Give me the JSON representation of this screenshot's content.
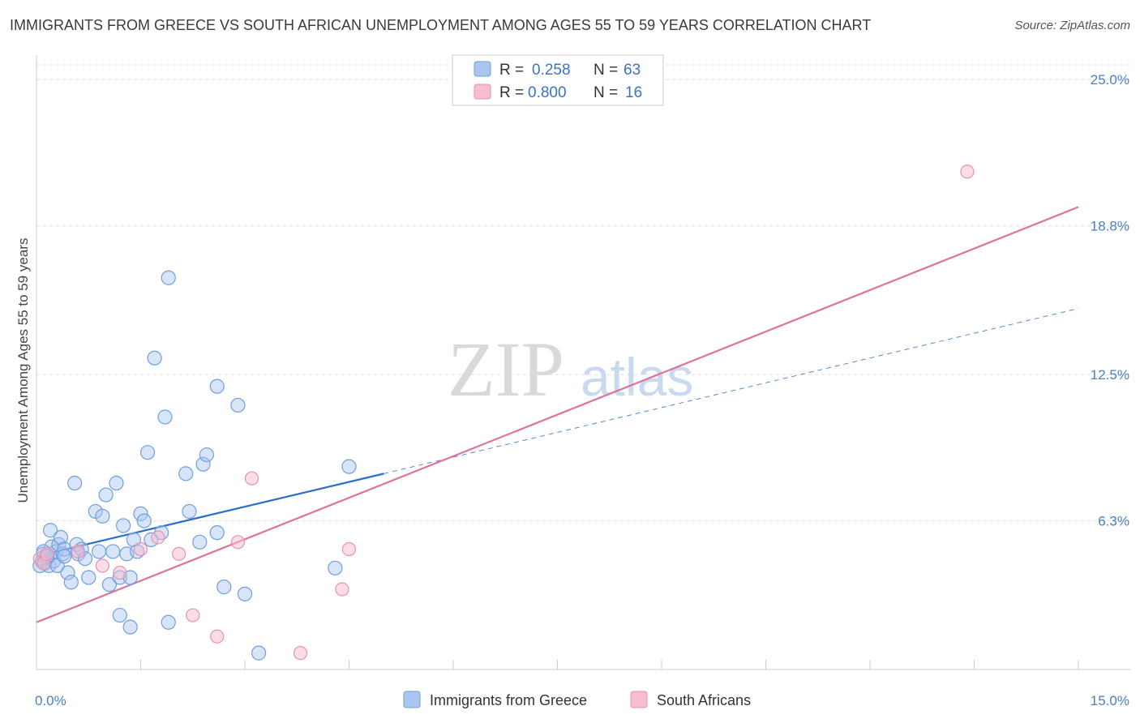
{
  "header": {
    "title": "IMMIGRANTS FROM GREECE VS SOUTH AFRICAN UNEMPLOYMENT AMONG AGES 55 TO 59 YEARS CORRELATION CHART",
    "source": "Source: ZipAtlas.com"
  },
  "watermark": {
    "zip": "ZIP",
    "atlas": "atlas"
  },
  "legend": {
    "rows": [
      {
        "r_label": "R =",
        "r_value": "0.258",
        "n_label": "N =",
        "n_value": "63"
      },
      {
        "r_label": "R =",
        "r_value": "0.800",
        "n_label": "N =",
        "n_value": "16"
      }
    ]
  },
  "colors": {
    "greece_fill": "#a9c6ef",
    "greece_stroke": "#6f9fde",
    "greece_line": "#2c6ecb",
    "sa_fill": "#f6bcd0",
    "sa_stroke": "#e891b0",
    "sa_line": "#e0729a",
    "grid": "#dddddd",
    "axis": "#cccccc"
  },
  "chart_data": {
    "type": "scatter",
    "title": "IMMIGRANTS FROM GREECE VS SOUTH AFRICAN UNEMPLOYMENT AMONG AGES 55 TO 59 YEARS CORRELATION CHART",
    "xlabel": "",
    "ylabel": "Unemployment Among Ages 55 to 59 years",
    "xlim": [
      0,
      15
    ],
    "ylim": [
      0,
      25.9
    ],
    "x_tick_labels": [
      {
        "value": 0,
        "label": "0.0%"
      },
      {
        "value": 15,
        "label": "15.0%"
      }
    ],
    "x_minor_ticks": [
      1.5,
      3.0,
      4.5,
      6.0,
      7.5,
      9.0,
      10.5,
      12.0,
      13.5,
      15.0
    ],
    "y_ticks": [
      {
        "value": 6.3,
        "label": "6.3%"
      },
      {
        "value": 12.5,
        "label": "12.5%"
      },
      {
        "value": 18.8,
        "label": "18.8%"
      },
      {
        "value": 25.0,
        "label": "25.0%"
      }
    ],
    "grid": true,
    "legend_position": "top-center",
    "series": [
      {
        "name": "Immigrants from Greece",
        "color": "#a9c6ef",
        "points": [
          [
            0.05,
            4.4
          ],
          [
            0.08,
            4.6
          ],
          [
            0.1,
            4.9
          ],
          [
            0.12,
            4.5
          ],
          [
            0.15,
            4.7
          ],
          [
            0.18,
            4.4
          ],
          [
            0.2,
            5.9
          ],
          [
            0.22,
            5.2
          ],
          [
            0.25,
            4.6
          ],
          [
            0.28,
            5.0
          ],
          [
            0.3,
            4.4
          ],
          [
            0.32,
            5.3
          ],
          [
            0.35,
            5.6
          ],
          [
            0.38,
            4.9
          ],
          [
            0.4,
            5.1
          ],
          [
            0.45,
            4.1
          ],
          [
            0.5,
            3.7
          ],
          [
            0.55,
            7.9
          ],
          [
            0.58,
            5.3
          ],
          [
            0.6,
            4.9
          ],
          [
            0.65,
            5.1
          ],
          [
            0.7,
            4.7
          ],
          [
            0.75,
            3.9
          ],
          [
            0.85,
            6.7
          ],
          [
            0.9,
            5.0
          ],
          [
            0.95,
            6.5
          ],
          [
            1.0,
            7.4
          ],
          [
            1.05,
            3.6
          ],
          [
            1.1,
            5.0
          ],
          [
            1.15,
            7.9
          ],
          [
            1.2,
            3.9
          ],
          [
            1.2,
            2.3
          ],
          [
            1.25,
            6.1
          ],
          [
            1.3,
            4.9
          ],
          [
            1.35,
            3.9
          ],
          [
            1.35,
            1.8
          ],
          [
            1.4,
            5.5
          ],
          [
            1.45,
            5.0
          ],
          [
            1.5,
            6.6
          ],
          [
            1.55,
            6.3
          ],
          [
            1.6,
            9.2
          ],
          [
            1.65,
            5.5
          ],
          [
            1.7,
            13.2
          ],
          [
            1.8,
            5.8
          ],
          [
            1.85,
            10.7
          ],
          [
            1.9,
            2.0
          ],
          [
            1.9,
            16.6
          ],
          [
            2.15,
            8.3
          ],
          [
            2.2,
            6.7
          ],
          [
            2.35,
            5.4
          ],
          [
            2.4,
            8.7
          ],
          [
            2.45,
            9.1
          ],
          [
            2.6,
            5.8
          ],
          [
            2.6,
            12.0
          ],
          [
            2.7,
            3.5
          ],
          [
            2.9,
            11.2
          ],
          [
            3.0,
            3.2
          ],
          [
            3.2,
            0.7
          ],
          [
            4.3,
            4.3
          ],
          [
            4.5,
            8.6
          ],
          [
            0.1,
            5.0
          ],
          [
            0.15,
            4.8
          ],
          [
            0.4,
            4.8
          ]
        ],
        "trend": {
          "x0": 0.0,
          "y0": 4.8,
          "x1": 5.0,
          "y1": 8.3,
          "dashed_to_x": 15.0,
          "dashed_to_y": 15.3
        }
      },
      {
        "name": "South Africans",
        "color": "#f6bcd0",
        "points": [
          [
            0.05,
            4.7
          ],
          [
            0.1,
            4.5
          ],
          [
            0.15,
            4.9
          ],
          [
            0.6,
            5.0
          ],
          [
            0.95,
            4.4
          ],
          [
            1.2,
            4.1
          ],
          [
            1.5,
            5.1
          ],
          [
            1.75,
            5.6
          ],
          [
            2.05,
            4.9
          ],
          [
            2.25,
            2.3
          ],
          [
            2.6,
            1.4
          ],
          [
            2.9,
            5.4
          ],
          [
            3.1,
            8.1
          ],
          [
            3.8,
            0.7
          ],
          [
            4.4,
            3.4
          ],
          [
            4.5,
            5.1
          ]
        ],
        "extra_points": [
          [
            13.4,
            21.1
          ]
        ],
        "trend": {
          "x0": 0.0,
          "y0": 2.0,
          "x1": 15.0,
          "y1": 19.6
        }
      }
    ]
  }
}
